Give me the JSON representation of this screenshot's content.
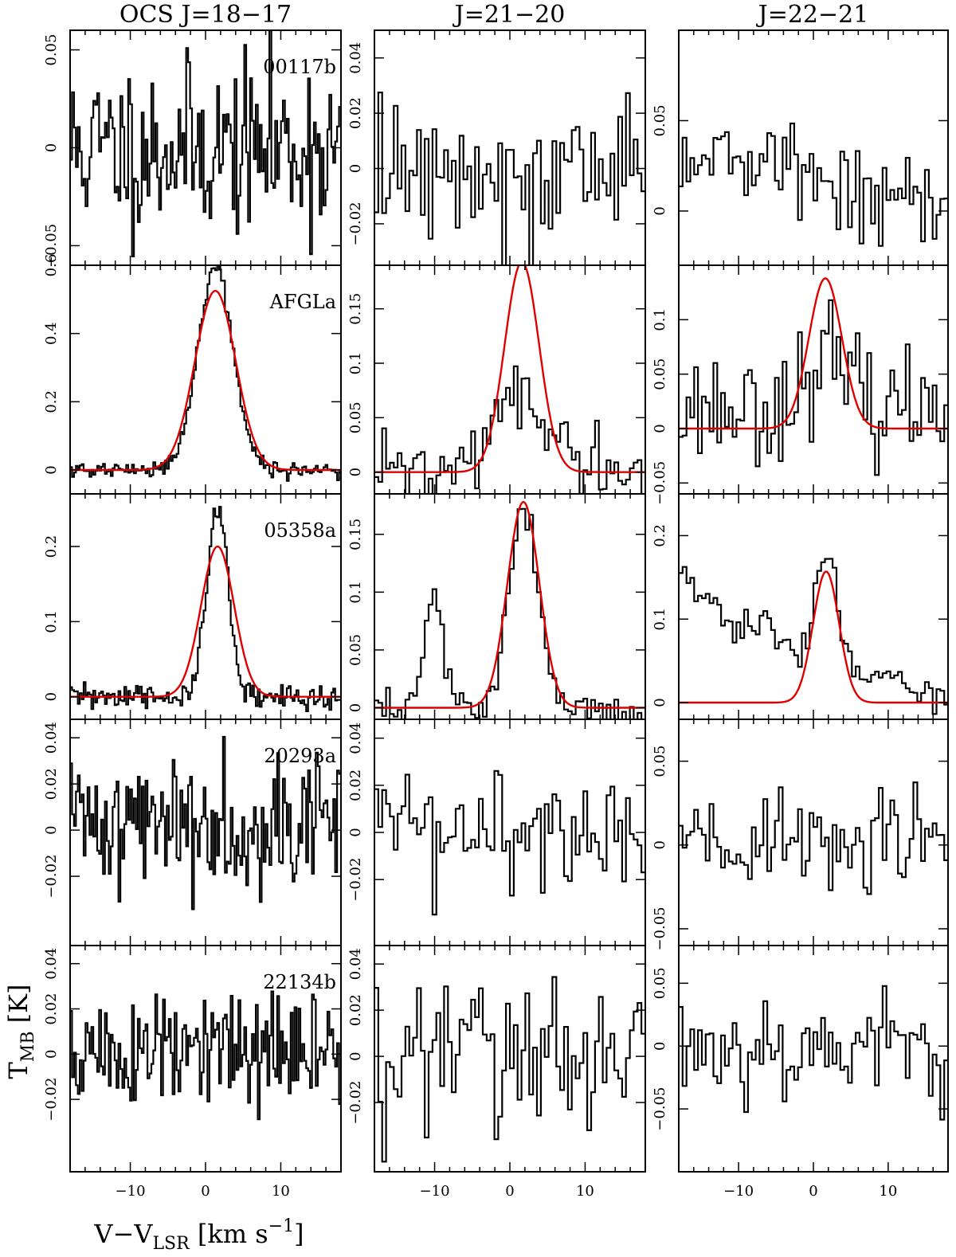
{
  "chart_data": {
    "type": "line",
    "layout": "grid 5 rows x 3 columns",
    "column_titles": [
      "OCS J=18−17",
      "J=21−20",
      "J=22−21"
    ],
    "row_labels": [
      "00117b",
      "AFGLa",
      "05358a",
      "20293a",
      "22134b"
    ],
    "xlabel": "V−V",
    "xlabel_sub": "LSR",
    "xlabel_units": "[km s",
    "xlabel_sup": "−1",
    "xlabel_close": "]",
    "ylabel": "T",
    "ylabel_sub": "MB",
    "ylabel_units": "[K]",
    "xlim": [
      -18,
      18
    ],
    "x_ticks": [
      -10,
      0,
      10
    ],
    "x_tick_labels": [
      "−10",
      "0",
      "10"
    ],
    "colors": {
      "spectrum": "#000000",
      "fit": "#e00000"
    },
    "panels": [
      {
        "row": 0,
        "col": 0,
        "ylim": [
          -0.06,
          0.06
        ],
        "y_ticks": [
          -0.05,
          0,
          0.05
        ],
        "y_tick_labels": [
          "−0.05",
          "0",
          "0.05"
        ],
        "noise": 0.022,
        "channels": 140,
        "seed": 11,
        "fit": null
      },
      {
        "row": 0,
        "col": 1,
        "ylim": [
          -0.035,
          0.05
        ],
        "y_ticks": [
          -0.02,
          0,
          0.02,
          0.04
        ],
        "y_tick_labels": [
          "−0.02",
          "0",
          "0.02",
          "0.04"
        ],
        "noise": 0.014,
        "channels": 70,
        "seed": 12,
        "fit": null
      },
      {
        "row": 0,
        "col": 2,
        "ylim": [
          -0.03,
          0.1
        ],
        "y_ticks": [
          0,
          0.05
        ],
        "y_tick_labels": [
          "0",
          "0.05"
        ],
        "noise": 0.013,
        "channels": 70,
        "seed": 13,
        "offset": 0.035,
        "slope": -0.0009,
        "fit": null
      },
      {
        "row": 1,
        "col": 0,
        "ylim": [
          -0.07,
          0.6
        ],
        "y_ticks": [
          0,
          0.2,
          0.4,
          0.6
        ],
        "y_tick_labels": [
          "0",
          "0.2",
          "0.4",
          "0.6"
        ],
        "noise": 0.012,
        "channels": 140,
        "seed": 21,
        "line": {
          "amp": 0.6,
          "center": 1.3,
          "fwhm": 5.5
        },
        "fit": {
          "amp": 0.525,
          "center": 1.3,
          "fwhm": 6.4
        }
      },
      {
        "row": 1,
        "col": 1,
        "ylim": [
          -0.02,
          0.19
        ],
        "y_ticks": [
          0,
          0.05,
          0.1,
          0.15
        ],
        "y_tick_labels": [
          "0",
          "0.05",
          "0.1",
          "0.15"
        ],
        "noise": 0.018,
        "channels": 70,
        "seed": 22,
        "line": {
          "amp": 0.06,
          "center": 1.5,
          "fwhm": 9
        },
        "fit": {
          "amp": 0.193,
          "center": 1.6,
          "fwhm": 5.4
        }
      },
      {
        "row": 1,
        "col": 2,
        "ylim": [
          -0.06,
          0.15
        ],
        "y_ticks": [
          -0.05,
          0,
          0.05,
          0.1
        ],
        "y_tick_labels": [
          "−0.05",
          "0",
          "0.05",
          "0.1"
        ],
        "noise": 0.025,
        "channels": 70,
        "seed": 23,
        "offset": 0.02,
        "line": {
          "amp": 0.045,
          "center": 1.5,
          "fwhm": 6
        },
        "fit": {
          "amp": 0.138,
          "center": 1.6,
          "fwhm": 5.2
        }
      },
      {
        "row": 2,
        "col": 0,
        "ylim": [
          -0.03,
          0.27
        ],
        "y_ticks": [
          0,
          0.1,
          0.2
        ],
        "y_tick_labels": [
          "0",
          "0.1",
          "0.2"
        ],
        "noise": 0.009,
        "channels": 140,
        "seed": 31,
        "line": {
          "amp": 0.25,
          "center": 1.6,
          "fwhm": 3.3
        },
        "fit": {
          "amp": 0.2,
          "center": 1.6,
          "fwhm": 5.2
        }
      },
      {
        "row": 2,
        "col": 1,
        "ylim": [
          -0.01,
          0.185
        ],
        "y_ticks": [
          0,
          0.05,
          0.1,
          0.15
        ],
        "y_tick_labels": [
          "0",
          "0.05",
          "0.1",
          "0.15"
        ],
        "noise": 0.009,
        "channels": 70,
        "seed": 32,
        "line": {
          "amp": 0.175,
          "center": 1.8,
          "fwhm": 4.6
        },
        "line2": {
          "amp": 0.085,
          "center": -10,
          "fwhm": 3.5
        },
        "fit": {
          "amp": 0.178,
          "center": 1.8,
          "fwhm": 5.0
        }
      },
      {
        "row": 2,
        "col": 2,
        "ylim": [
          -0.02,
          0.25
        ],
        "y_ticks": [
          0,
          0.1,
          0.2
        ],
        "y_tick_labels": [
          "0",
          "0.1",
          "0.2"
        ],
        "noise": 0.01,
        "channels": 70,
        "seed": 33,
        "baseline_pts": [
          [
            -18,
            0.16
          ],
          [
            -11,
            0.09
          ],
          [
            -7,
            0.095
          ],
          [
            -3,
            0.06
          ],
          [
            5,
            0.04
          ],
          [
            18,
            0.0
          ]
        ],
        "line": {
          "amp": 0.14,
          "center": 1.7,
          "fwhm": 3.0
        },
        "fit": {
          "amp": 0.157,
          "center": 1.7,
          "fwhm": 4.1
        }
      },
      {
        "row": 3,
        "col": 0,
        "ylim": [
          -0.05,
          0.048
        ],
        "y_ticks": [
          -0.02,
          0,
          0.02,
          0.04
        ],
        "y_tick_labels": [
          "−0.02",
          "0",
          "0.02",
          "0.04"
        ],
        "noise": 0.015,
        "channels": 140,
        "seed": 41,
        "offset": 0.004,
        "fit": null
      },
      {
        "row": 3,
        "col": 1,
        "ylim": [
          -0.048,
          0.048
        ],
        "y_ticks": [
          -0.02,
          0,
          0.02,
          0.04
        ],
        "y_tick_labels": [
          "−0.02",
          "0",
          "0.02",
          "0.04"
        ],
        "noise": 0.013,
        "channels": 70,
        "seed": 42,
        "fit": null
      },
      {
        "row": 3,
        "col": 2,
        "ylim": [
          -0.06,
          0.075
        ],
        "y_ticks": [
          -0.05,
          0,
          0.05
        ],
        "y_tick_labels": [
          "−0.05",
          "0",
          "0.05"
        ],
        "noise": 0.016,
        "channels": 70,
        "seed": 43,
        "fit": null
      },
      {
        "row": 4,
        "col": 0,
        "ylim": [
          -0.052,
          0.048
        ],
        "y_ticks": [
          -0.02,
          0,
          0.02,
          0.04
        ],
        "y_tick_labels": [
          "−0.02",
          "0",
          "0.02",
          "0.04"
        ],
        "noise": 0.014,
        "channels": 140,
        "seed": 51,
        "fit": null
      },
      {
        "row": 4,
        "col": 1,
        "ylim": [
          -0.05,
          0.048
        ],
        "y_ticks": [
          -0.02,
          0,
          0.02,
          0.04
        ],
        "y_tick_labels": [
          "−0.02",
          "0",
          "0.02",
          "0.04"
        ],
        "noise": 0.018,
        "channels": 70,
        "seed": 52,
        "fit": null
      },
      {
        "row": 4,
        "col": 2,
        "ylim": [
          -0.1,
          0.08
        ],
        "y_ticks": [
          -0.05,
          0,
          0.05
        ],
        "y_tick_labels": [
          "−0.05",
          "0",
          "0.05"
        ],
        "noise": 0.022,
        "channels": 70,
        "seed": 53,
        "fit": null
      }
    ]
  }
}
